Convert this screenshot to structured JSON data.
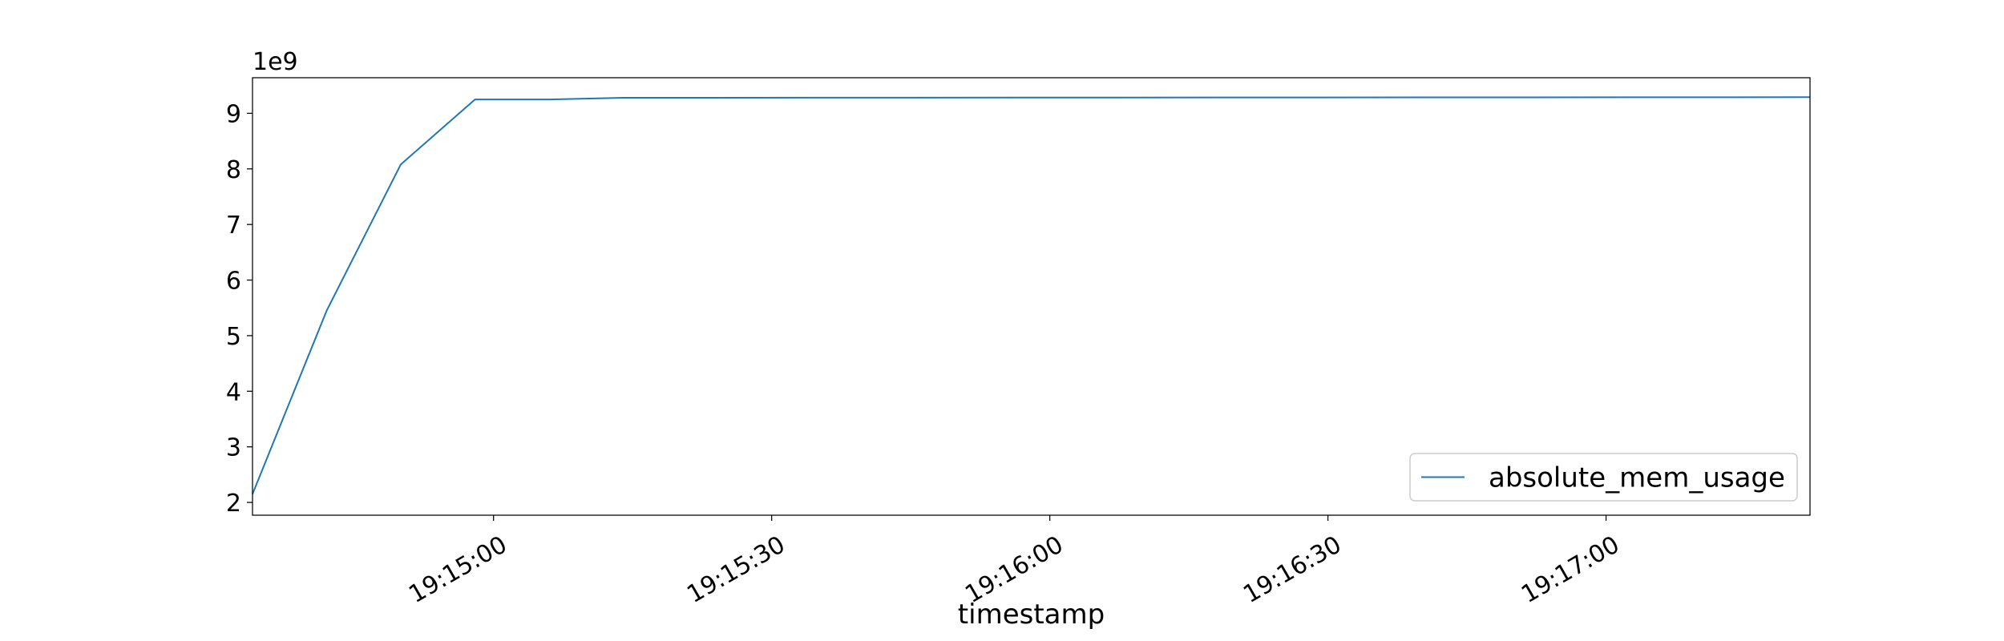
{
  "chart_data": {
    "type": "line",
    "title": "",
    "xlabel": "timestamp",
    "ylabel": "",
    "y_multiplier_label": "1e9",
    "x_range": [
      "19:14:34",
      "19:17:22"
    ],
    "ylim": [
      1.77,
      9.64
    ],
    "grid": false,
    "legend_position": "lower-right",
    "x_ticks": [
      "19:15:00",
      "19:15:30",
      "19:16:00",
      "19:16:30",
      "19:17:00"
    ],
    "y_ticks": [
      2,
      3,
      4,
      5,
      6,
      7,
      8,
      9
    ],
    "series": [
      {
        "name": "absolute_mem_usage",
        "color": "#1f77b4",
        "x": [
          "19:14:34",
          "19:14:42",
          "19:14:50",
          "19:14:58",
          "19:15:06",
          "19:15:14",
          "19:17:22"
        ],
        "y": [
          2.15,
          5.45,
          8.08,
          9.25,
          9.25,
          9.28,
          9.29
        ]
      }
    ]
  }
}
